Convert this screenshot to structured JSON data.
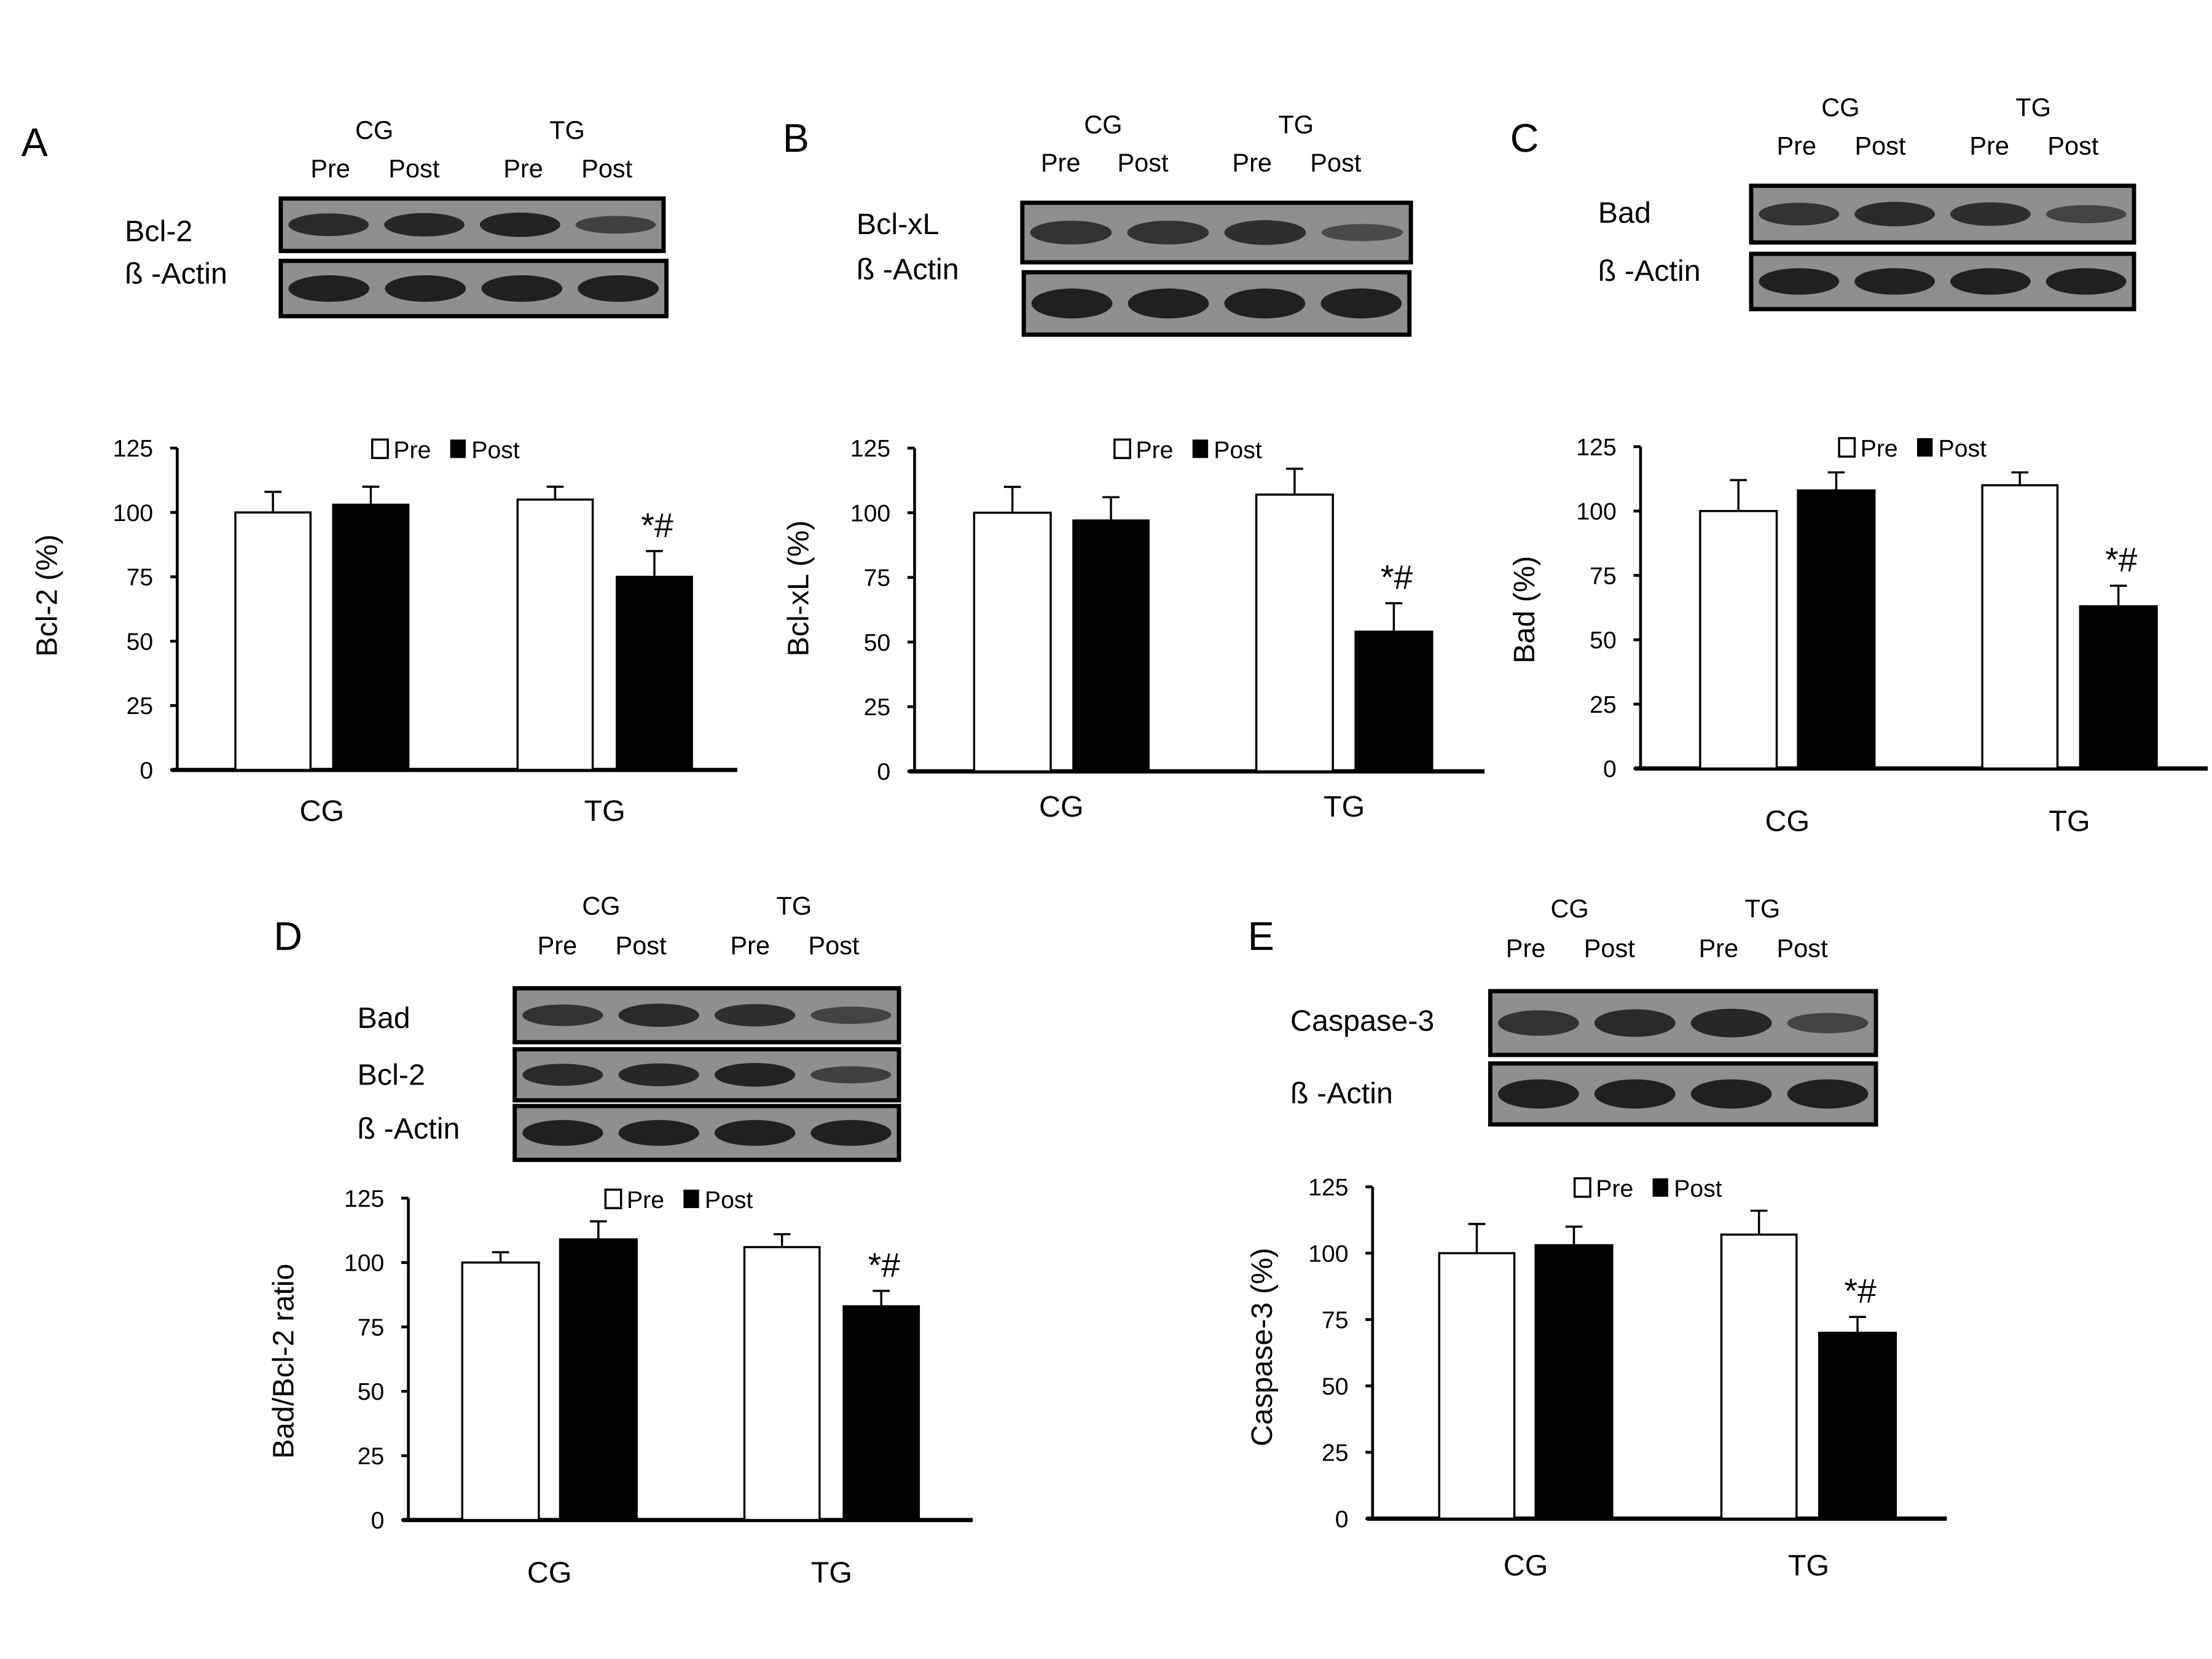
{
  "legend": {
    "pre": "Pre",
    "post": "Post"
  },
  "groups": [
    "CG",
    "TG"
  ],
  "lane_labels": [
    "Pre",
    "Post",
    "Pre",
    "Post"
  ],
  "colors": {
    "pre": "#ffffff",
    "post": "#000000",
    "blot_bg": "#8f8f8f",
    "band": "#1a1a1a"
  },
  "chart_data": [
    {
      "type": "bar",
      "panel": "A",
      "ylabel": "Bcl-2 (%)",
      "ylim": [
        0,
        125
      ],
      "yticks": [
        0,
        25,
        50,
        75,
        100,
        125
      ],
      "categories": [
        "CG",
        "TG"
      ],
      "series": [
        {
          "name": "Pre",
          "values": [
            100,
            105
          ],
          "errors": [
            8,
            5
          ]
        },
        {
          "name": "Post",
          "values": [
            103,
            75
          ],
          "errors": [
            7,
            10
          ]
        }
      ],
      "annotations": [
        {
          "category": "TG",
          "series": "Post",
          "text": "*#"
        }
      ],
      "blot": {
        "rows": [
          {
            "label": "Bcl-2",
            "intensity": [
              0.85,
              0.9,
              0.95,
              0.55
            ]
          },
          {
            "label": "ß -Actin",
            "intensity": [
              1,
              1,
              1,
              1
            ]
          }
        ]
      },
      "legend_position": "top-center"
    },
    {
      "type": "bar",
      "panel": "B",
      "ylabel": "Bcl-xL (%)",
      "ylim": [
        0,
        125
      ],
      "yticks": [
        0,
        25,
        50,
        75,
        100,
        125
      ],
      "categories": [
        "CG",
        "TG"
      ],
      "series": [
        {
          "name": "Pre",
          "values": [
            100,
            107
          ],
          "errors": [
            10,
            10
          ]
        },
        {
          "name": "Post",
          "values": [
            97,
            54
          ],
          "errors": [
            9,
            11
          ]
        }
      ],
      "annotations": [
        {
          "category": "TG",
          "series": "Post",
          "text": "*#"
        }
      ],
      "blot": {
        "rows": [
          {
            "label": "Bcl-xL",
            "intensity": [
              0.75,
              0.75,
              0.8,
              0.4
            ]
          },
          {
            "label": "ß -Actin",
            "intensity": [
              1,
              1,
              1,
              1
            ]
          }
        ]
      },
      "legend_position": "top-center"
    },
    {
      "type": "bar",
      "panel": "C",
      "ylabel": "Bad (%)",
      "ylim": [
        0,
        125
      ],
      "yticks": [
        0,
        25,
        50,
        75,
        100,
        125
      ],
      "categories": [
        "CG",
        "TG"
      ],
      "series": [
        {
          "name": "Pre",
          "values": [
            100,
            110
          ],
          "errors": [
            12,
            5
          ]
        },
        {
          "name": "Post",
          "values": [
            108,
            63
          ],
          "errors": [
            7,
            8
          ]
        }
      ],
      "annotations": [
        {
          "category": "TG",
          "series": "Post",
          "text": "*#"
        }
      ],
      "blot": {
        "rows": [
          {
            "label": "Bad",
            "intensity": [
              0.75,
              0.85,
              0.8,
              0.5
            ]
          },
          {
            "label": "ß -Actin",
            "intensity": [
              1,
              1,
              1,
              1
            ]
          }
        ]
      },
      "legend_position": "top-center"
    },
    {
      "type": "bar",
      "panel": "D",
      "ylabel": "Bad/Bcl-2 ratio",
      "ylim": [
        0,
        125
      ],
      "yticks": [
        0,
        25,
        50,
        75,
        100,
        125
      ],
      "categories": [
        "CG",
        "TG"
      ],
      "series": [
        {
          "name": "Pre",
          "values": [
            100,
            106
          ],
          "errors": [
            4,
            5
          ]
        },
        {
          "name": "Post",
          "values": [
            109,
            83
          ],
          "errors": [
            7,
            6
          ]
        }
      ],
      "annotations": [
        {
          "category": "TG",
          "series": "Post",
          "text": "*#"
        }
      ],
      "blot": {
        "rows": [
          {
            "label": "Bad",
            "intensity": [
              0.75,
              0.85,
              0.8,
              0.5
            ]
          },
          {
            "label": "Bcl-2",
            "intensity": [
              0.85,
              0.9,
              0.95,
              0.55
            ]
          },
          {
            "label": "ß -Actin",
            "intensity": [
              1,
              1,
              1,
              1
            ]
          }
        ]
      },
      "legend_position": "top-center"
    },
    {
      "type": "bar",
      "panel": "E",
      "ylabel": "Caspase-3 (%)",
      "ylim": [
        0,
        125
      ],
      "yticks": [
        0,
        25,
        50,
        75,
        100,
        125
      ],
      "categories": [
        "CG",
        "TG"
      ],
      "series": [
        {
          "name": "Pre",
          "values": [
            100,
            107
          ],
          "errors": [
            11,
            9
          ]
        },
        {
          "name": "Post",
          "values": [
            103,
            70
          ],
          "errors": [
            7,
            6
          ]
        }
      ],
      "annotations": [
        {
          "category": "TG",
          "series": "Post",
          "text": "*#"
        }
      ],
      "blot": {
        "rows": [
          {
            "label": "Caspase-3",
            "intensity": [
              0.75,
              0.85,
              0.9,
              0.5
            ]
          },
          {
            "label": "ß -Actin",
            "intensity": [
              1,
              1,
              1,
              1
            ]
          }
        ]
      },
      "legend_position": "top-center"
    }
  ]
}
